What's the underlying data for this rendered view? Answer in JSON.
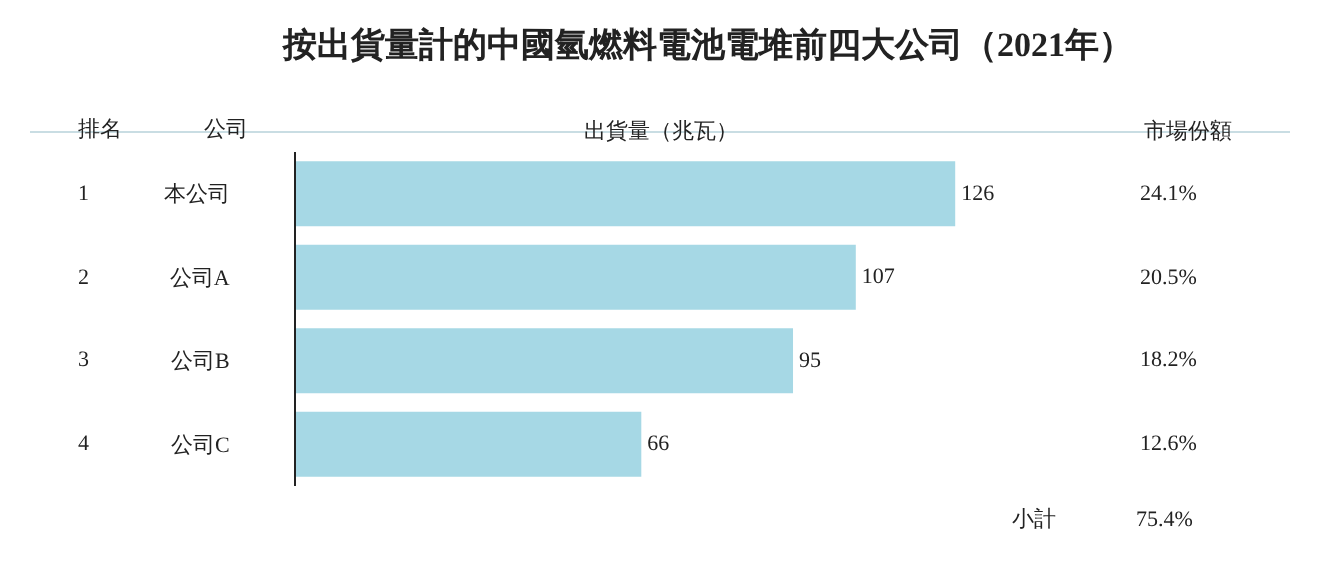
{
  "chart_data": {
    "type": "bar",
    "orientation": "horizontal",
    "title": "按出貨量計的中國氫燃料電池電堆前四大公司（2021年）",
    "xlabel": "出貨量（兆瓦）",
    "categories": [
      "本公司",
      "公司A",
      "公司B",
      "公司C"
    ],
    "values": [
      126,
      107,
      95,
      66
    ],
    "color": "#a6d8e5",
    "data_labels": true,
    "annotations": [
      "排名",
      "公司",
      "市場份額",
      "1",
      "2",
      "3",
      "4",
      "24.1%",
      "20.5%",
      "18.2%",
      "12.6%",
      "小計",
      "75.4%"
    ]
  }
}
